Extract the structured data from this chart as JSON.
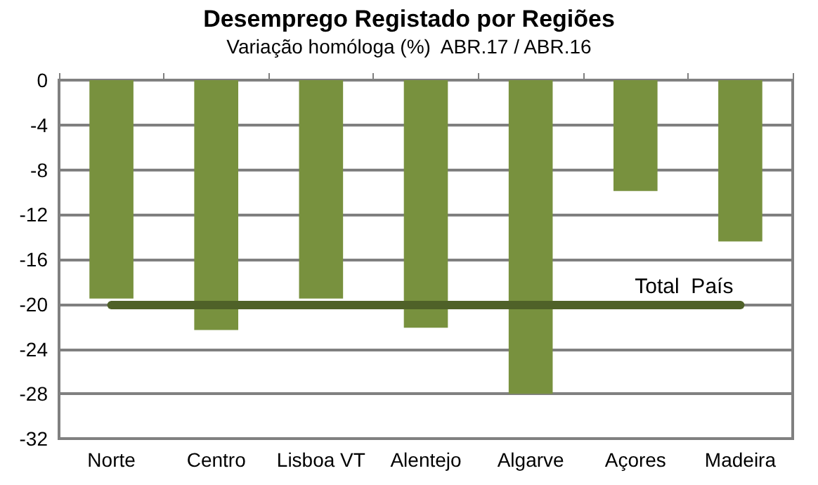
{
  "chart_data": {
    "type": "bar",
    "title": "Desemprego Registado por Regiões",
    "subtitle": "Variação homóloga (%)  ABR.17 / ABR.16",
    "categories": [
      "Norte",
      "Centro",
      "Lisboa VT",
      "Alentejo",
      "Algarve",
      "Açores",
      "Madeira"
    ],
    "values": [
      -19.5,
      -22.3,
      -19.5,
      -22.1,
      -28,
      -9.9,
      -14.4
    ],
    "color": "#78913e",
    "ylim": [
      -32,
      0
    ],
    "yticks": [
      -32,
      -28,
      -24,
      -20,
      -16,
      -12,
      -8,
      -4,
      0
    ],
    "grid": "y",
    "ref_lines": [
      {
        "axis": "y",
        "value": -20,
        "label": "Total  País",
        "color": "#4f6128"
      }
    ]
  }
}
